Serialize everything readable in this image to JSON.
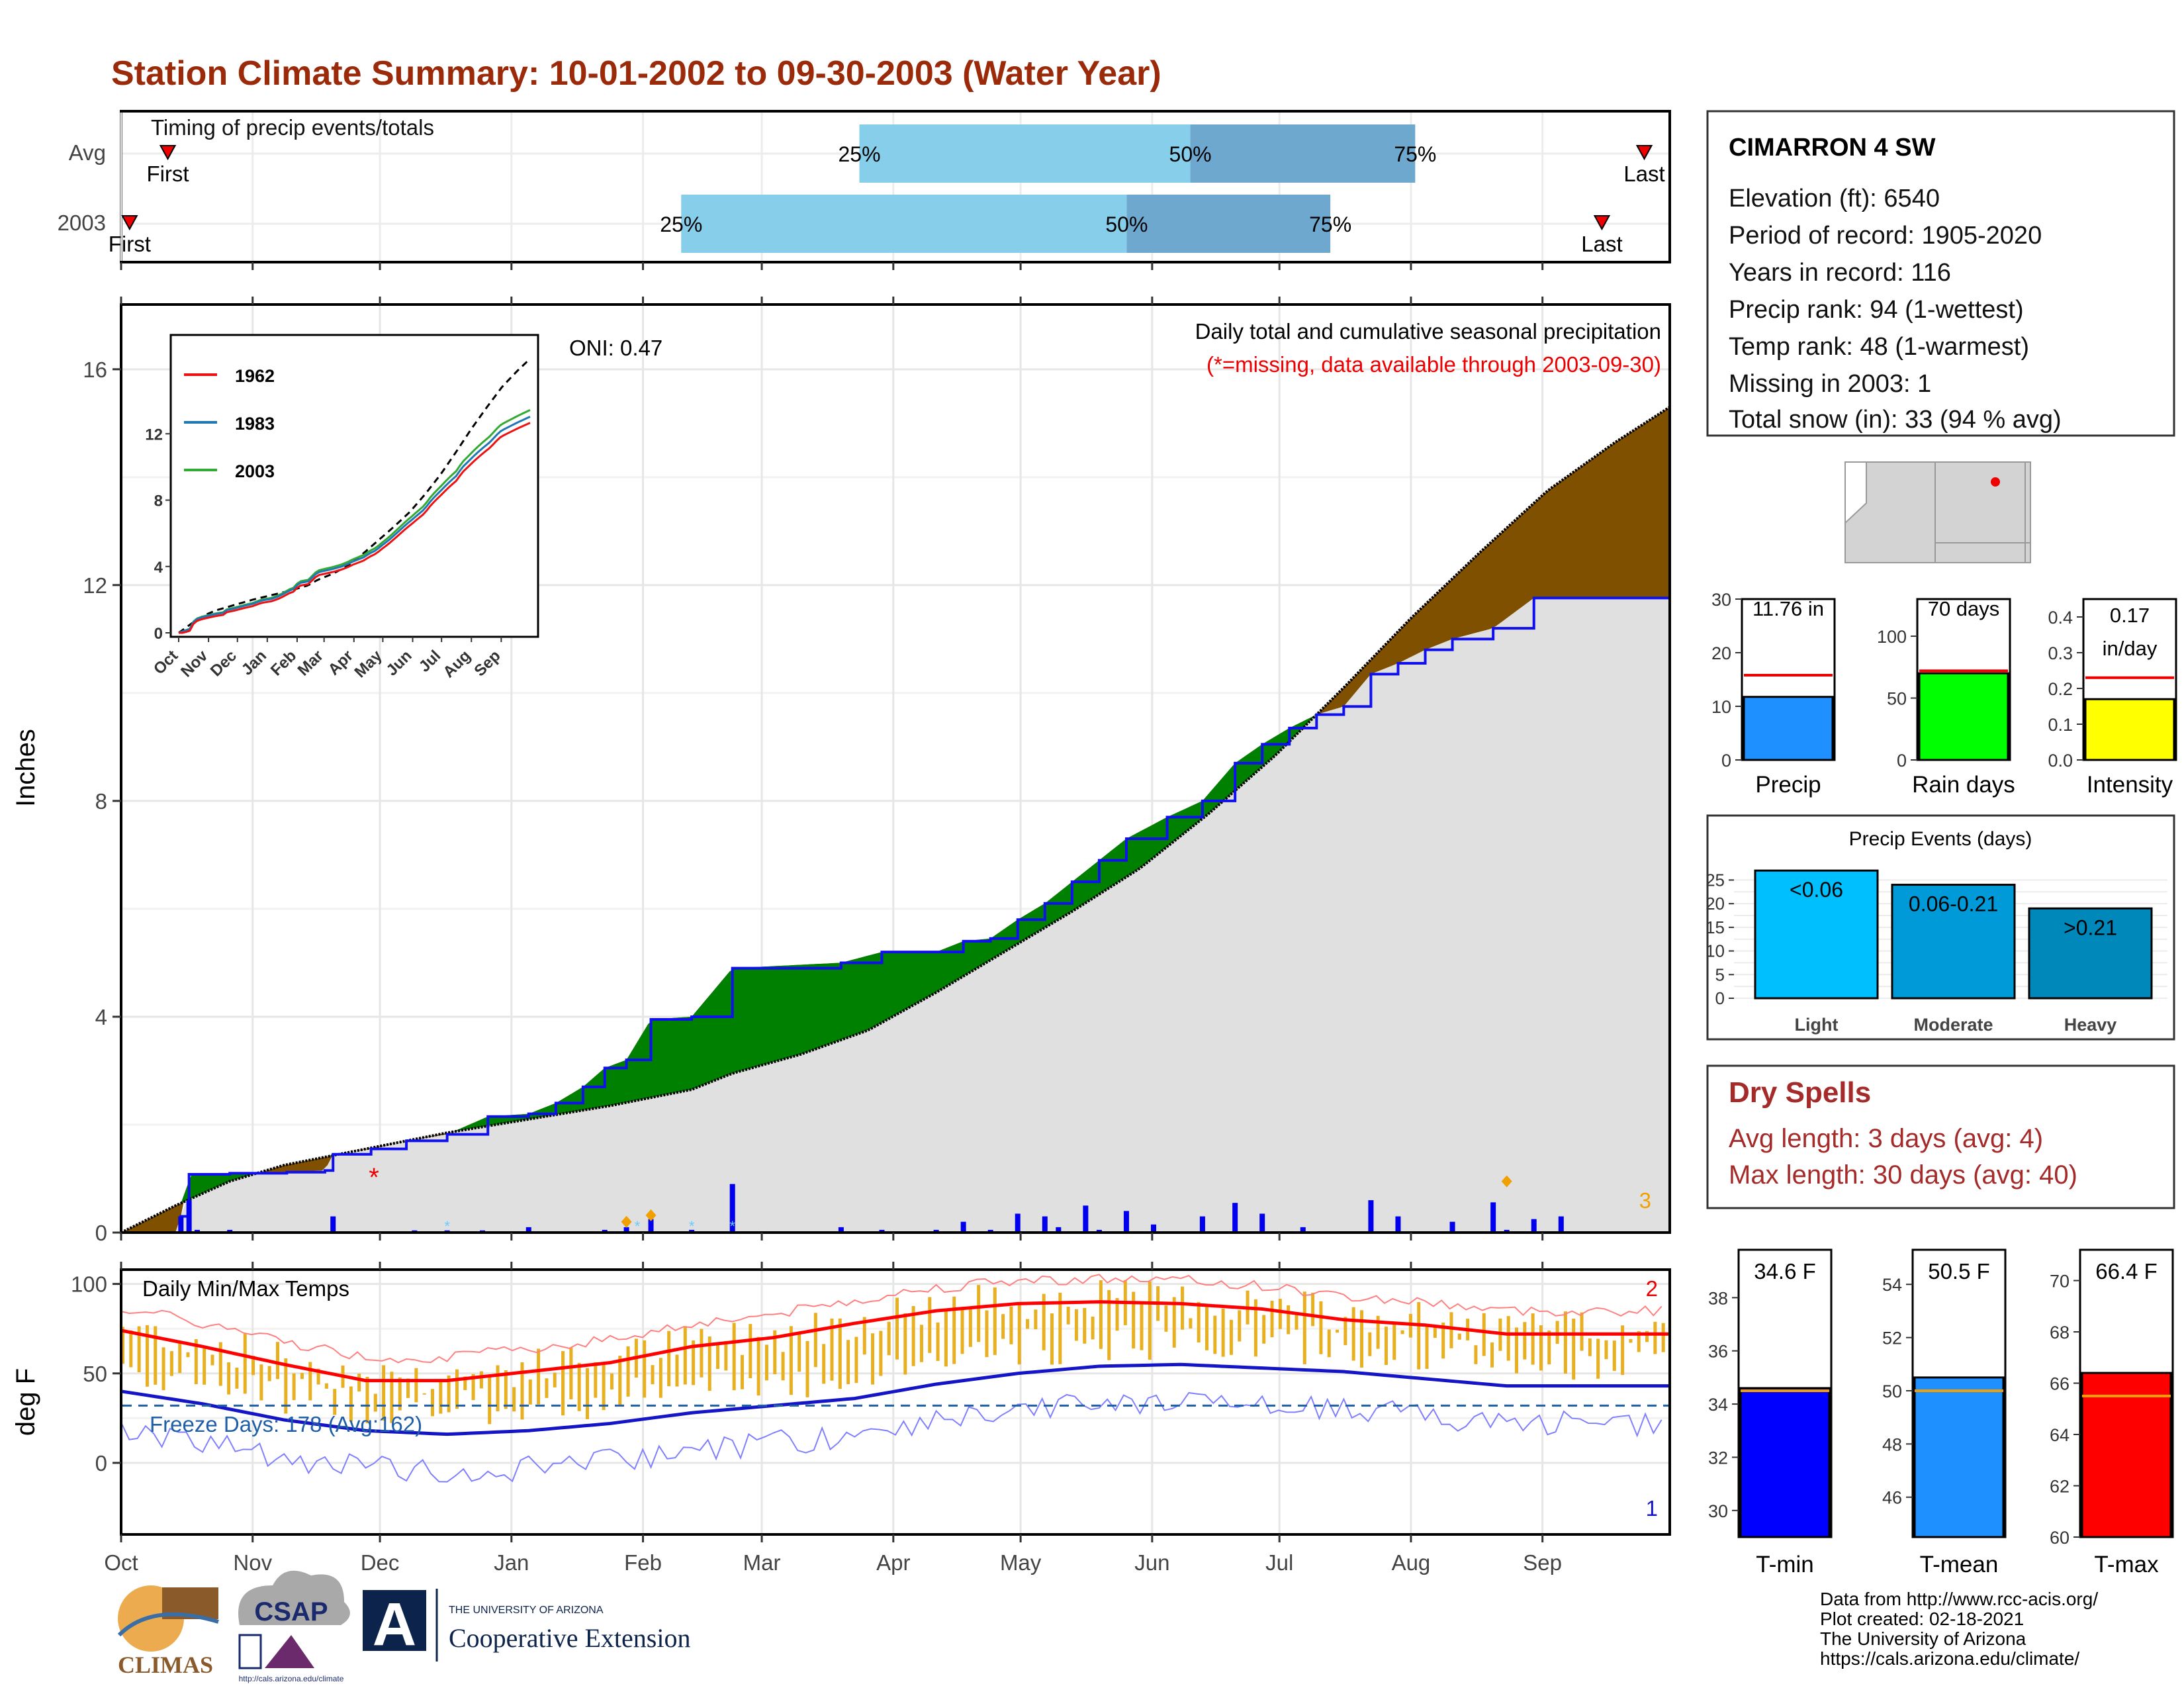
{
  "title": "Station Climate Summary: 10-01-2002 to 09-30-2003 (Water Year)",
  "colors": {
    "title": "#9a2a0a",
    "dry_surplus": "#7f5000",
    "wet_surplus": "#008000",
    "avg_fill": "#e0e0e0",
    "cum_line": "#1010ee",
    "bar_light": "#87ceeb",
    "bar_dark": "#6ea8cf",
    "tmax": "#ff0000",
    "tmin": "#1515c8",
    "temp_bars": "#e8b020",
    "dry_spells": "#a52a2a"
  },
  "timing": {
    "title": "Timing of precip events/totals",
    "rows": [
      {
        "label": "Avg",
        "first_label": "First",
        "last_label": "Last",
        "pct25": "25%",
        "pct50": "50%",
        "pct75": "75%",
        "first_date": "2002-10-12",
        "last_date": "2003-09-25",
        "d25": "2003-03-24",
        "d50": "2003-06-10",
        "d75": "2003-08-02"
      },
      {
        "label": "2003",
        "first_label": "First",
        "last_label": "Last",
        "pct25": "25%",
        "pct50": "50%",
        "pct75": "75%",
        "first_date": "2002-10-03",
        "last_date": "2003-09-15",
        "d25": "2003-02-10",
        "d50": "2003-05-26",
        "d75": "2003-07-13"
      }
    ]
  },
  "precip_panel": {
    "header": "Daily total and cumulative seasonal precipitation",
    "missing_note": "(*=missing, data available through 2003-09-30)",
    "oni": "ONI: 0.47",
    "ylabel": "Inches",
    "yticks": [
      "0",
      "4",
      "8",
      "12",
      "16"
    ],
    "corner_count": "3"
  },
  "inset": {
    "legend": [
      "1962",
      "1983",
      "2003"
    ],
    "yticks": [
      "0",
      "4",
      "8",
      "12"
    ],
    "xticks": [
      "Oct",
      "Nov",
      "Dec",
      "Jan",
      "Feb",
      "Mar",
      "Apr",
      "May",
      "Jun",
      "Jul",
      "Aug",
      "Sep"
    ]
  },
  "temp_panel": {
    "title": "Daily Min/Max Temps",
    "ylabel": "deg F",
    "yticks": [
      "0",
      "50",
      "100"
    ],
    "freeze": "Freeze Days: 178 (Avg:162)",
    "corner_max": "2",
    "corner_min": "1"
  },
  "months": [
    "Oct",
    "Nov",
    "Dec",
    "Jan",
    "Feb",
    "Mar",
    "Apr",
    "May",
    "Jun",
    "Jul",
    "Aug",
    "Sep"
  ],
  "station": {
    "name": "CIMARRON 4 SW",
    "lines": [
      "Elevation (ft): 6540",
      "Period of record: 1905-2020",
      "Years in record: 116",
      "Precip rank: 94 (1-wettest)",
      "Temp rank: 48 (1-warmest)",
      "Missing in 2003: 1",
      "Total snow (in): 33 (94 % avg)"
    ]
  },
  "mini_bars": [
    {
      "label": "Precip",
      "value_text": "11.76 in",
      "value": 11.76,
      "avg": 15.8,
      "yticks": [
        "0",
        "10",
        "20",
        "30"
      ],
      "ymax": 30,
      "color": "#1e90ff"
    },
    {
      "label": "Rain days",
      "value_text": "70 days",
      "value": 70,
      "avg": 72,
      "yticks": [
        "0",
        "50",
        "100"
      ],
      "ymax": 130,
      "color": "#00ff00"
    },
    {
      "label": "Intensity",
      "value_text_1": "0.17",
      "value_text_2": "in/day",
      "value": 0.17,
      "avg": 0.23,
      "yticks": [
        "0.0",
        "0.1",
        "0.2",
        "0.3",
        "0.4"
      ],
      "ymax": 0.45,
      "color": "#ffff00"
    }
  ],
  "precip_events": {
    "title": "Precip Events (days)",
    "yticks": [
      "0",
      "5",
      "10",
      "15",
      "20",
      "25"
    ],
    "categories": [
      "Light",
      "Moderate",
      "Heavy"
    ],
    "bar_labels": [
      "<0.06",
      "0.06-0.21",
      ">0.21"
    ],
    "values": [
      27,
      24,
      19
    ],
    "colors": [
      "#00bfff",
      "#009ad8",
      "#0088bb"
    ]
  },
  "dry_spells": {
    "title": "Dry Spells",
    "avg_line": "Avg length: 3 days (avg: 4)",
    "max_line": "Max length: 30 days (avg: 40)"
  },
  "temp_bars": [
    {
      "label": "T-min",
      "value_text": "34.6 F",
      "value": 34.6,
      "avg": 34.5,
      "yticks": [
        "30",
        "32",
        "34",
        "36",
        "38"
      ],
      "ymin": 29,
      "ymax": 39.8,
      "color": "#0000ff"
    },
    {
      "label": "T-mean",
      "value_text": "50.5 F",
      "value": 50.5,
      "avg": 50.0,
      "yticks": [
        "46",
        "48",
        "50",
        "52",
        "54"
      ],
      "ymin": 44.5,
      "ymax": 55.3,
      "color": "#1e90ff"
    },
    {
      "label": "T-max",
      "value_text": "66.4 F",
      "value": 66.4,
      "avg": 65.5,
      "yticks": [
        "60",
        "62",
        "64",
        "66",
        "68",
        "70"
      ],
      "ymin": 60,
      "ymax": 71.2,
      "color": "#ff0000"
    }
  ],
  "footer": {
    "credits": [
      "Data from http://www.rcc-acis.org/",
      "Plot created: 02-18-2021",
      "The University of Arizona",
      "https://cals.arizona.edu/climate/"
    ],
    "climas": "CLIMAS",
    "csap": "CSAP",
    "csap_url": "http://cals.arizona.edu/climate",
    "ua_line1": "THE UNIVERSITY OF ARIZONA",
    "ua_line2": "Cooperative Extension",
    "ua_logo_letter": "A"
  },
  "chart_data": {
    "type": "area",
    "x_label": "day of water year",
    "y_label": "Inches",
    "ylim": [
      0,
      17.2
    ],
    "cumulative_2003": [
      [
        0,
        0
      ],
      [
        21,
        0
      ],
      [
        22,
        0.3
      ],
      [
        25,
        1.08
      ],
      [
        40,
        1.1
      ],
      [
        61,
        1.12
      ],
      [
        75,
        1.15
      ],
      [
        78,
        1.45
      ],
      [
        92,
        1.55
      ],
      [
        105,
        1.7
      ],
      [
        120,
        1.82
      ],
      [
        135,
        2.15
      ],
      [
        150,
        2.2
      ],
      [
        160,
        2.4
      ],
      [
        170,
        2.7
      ],
      [
        178,
        3.05
      ],
      [
        186,
        3.2
      ],
      [
        195,
        3.95
      ],
      [
        210,
        4.0
      ],
      [
        225,
        4.9
      ],
      [
        265,
        5.0
      ],
      [
        280,
        5.2
      ],
      [
        300,
        5.2
      ],
      [
        310,
        5.4
      ],
      [
        320,
        5.45
      ],
      [
        330,
        5.8
      ],
      [
        340,
        6.1
      ],
      [
        350,
        6.5
      ],
      [
        360,
        6.9
      ],
      [
        370,
        7.3
      ],
      [
        385,
        7.7
      ],
      [
        398,
        8.0
      ],
      [
        410,
        8.7
      ],
      [
        420,
        9.05
      ],
      [
        430,
        9.35
      ],
      [
        440,
        9.6
      ],
      [
        450,
        9.75
      ],
      [
        460,
        10.35
      ],
      [
        470,
        10.55
      ],
      [
        480,
        10.8
      ],
      [
        490,
        11.0
      ],
      [
        505,
        11.2
      ],
      [
        520,
        11.76
      ],
      [
        570,
        11.76
      ]
    ],
    "average_cumulative": [
      [
        0,
        0
      ],
      [
        20,
        0.5
      ],
      [
        40,
        0.95
      ],
      [
        60,
        1.25
      ],
      [
        90,
        1.55
      ],
      [
        120,
        1.85
      ],
      [
        150,
        2.1
      ],
      [
        180,
        2.35
      ],
      [
        210,
        2.65
      ],
      [
        225,
        2.95
      ],
      [
        250,
        3.3
      ],
      [
        275,
        3.75
      ],
      [
        300,
        4.45
      ],
      [
        325,
        5.2
      ],
      [
        350,
        5.95
      ],
      [
        375,
        6.75
      ],
      [
        400,
        7.75
      ],
      [
        425,
        8.85
      ],
      [
        450,
        10.1
      ],
      [
        475,
        11.4
      ],
      [
        500,
        12.6
      ],
      [
        525,
        13.75
      ],
      [
        550,
        14.65
      ],
      [
        570,
        15.3
      ]
    ],
    "daily_precip_2003": [
      [
        22,
        0.3
      ],
      [
        25,
        0.6
      ],
      [
        28,
        0.05
      ],
      [
        40,
        0.05
      ],
      [
        78,
        0.3
      ],
      [
        108,
        0.04
      ],
      [
        120,
        0.04
      ],
      [
        133,
        0.04
      ],
      [
        150,
        0.1
      ],
      [
        178,
        0.05
      ],
      [
        186,
        0.1
      ],
      [
        195,
        0.25
      ],
      [
        210,
        0.05
      ],
      [
        225,
        0.9
      ],
      [
        265,
        0.1
      ],
      [
        280,
        0.05
      ],
      [
        300,
        0.05
      ],
      [
        310,
        0.2
      ],
      [
        320,
        0.05
      ],
      [
        330,
        0.35
      ],
      [
        340,
        0.3
      ],
      [
        345,
        0.1
      ],
      [
        355,
        0.5
      ],
      [
        360,
        0.05
      ],
      [
        370,
        0.4
      ],
      [
        380,
        0.15
      ],
      [
        398,
        0.3
      ],
      [
        410,
        0.55
      ],
      [
        420,
        0.35
      ],
      [
        435,
        0.1
      ],
      [
        460,
        0.6
      ],
      [
        470,
        0.3
      ],
      [
        490,
        0.2
      ],
      [
        505,
        0.56
      ],
      [
        510,
        0.05
      ],
      [
        520,
        0.25
      ],
      [
        530,
        0.3
      ]
    ],
    "temp": {
      "ylabel": "deg F",
      "ylim": [
        -40,
        108
      ],
      "tmax_avg": [
        [
          0,
          74
        ],
        [
          30,
          65
        ],
        [
          60,
          55
        ],
        [
          90,
          46
        ],
        [
          120,
          46
        ],
        [
          150,
          51
        ],
        [
          180,
          56
        ],
        [
          210,
          65
        ],
        [
          240,
          70
        ],
        [
          270,
          78
        ],
        [
          300,
          85
        ],
        [
          330,
          89
        ],
        [
          360,
          90
        ],
        [
          390,
          89
        ],
        [
          420,
          86
        ],
        [
          450,
          80
        ],
        [
          480,
          77
        ],
        [
          510,
          72
        ]
      ],
      "tmin_avg": [
        [
          0,
          40
        ],
        [
          30,
          33
        ],
        [
          60,
          24
        ],
        [
          90,
          18
        ],
        [
          120,
          16
        ],
        [
          150,
          18
        ],
        [
          180,
          22
        ],
        [
          210,
          28
        ],
        [
          240,
          32
        ],
        [
          270,
          36
        ],
        [
          300,
          44
        ],
        [
          330,
          50
        ],
        [
          360,
          54
        ],
        [
          390,
          55
        ],
        [
          420,
          53
        ],
        [
          450,
          51
        ],
        [
          480,
          47
        ],
        [
          510,
          43
        ]
      ],
      "freeze_line": 32
    }
  }
}
